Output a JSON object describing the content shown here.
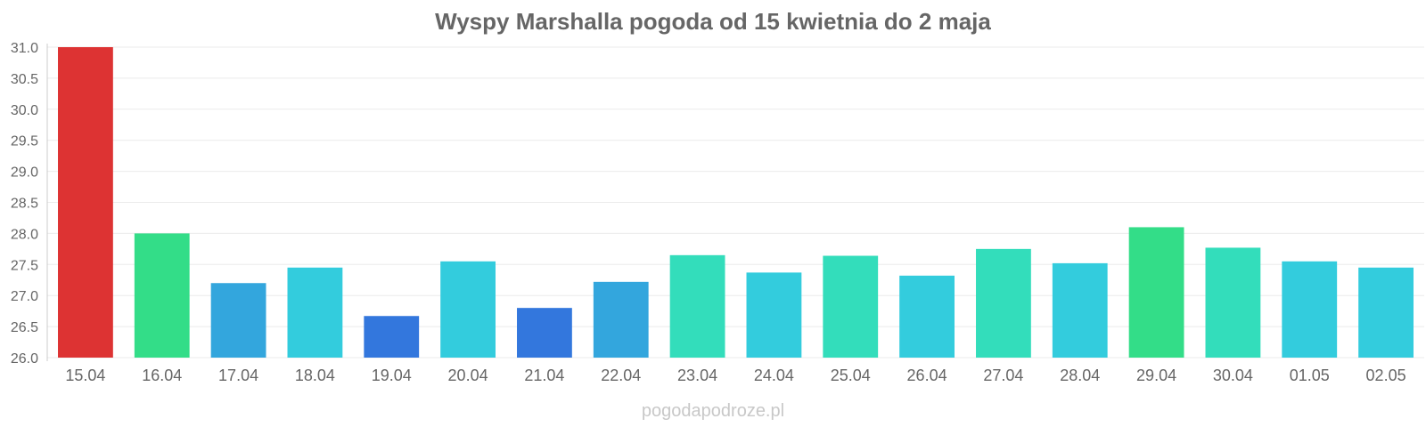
{
  "chart_data": {
    "type": "bar",
    "title": "Wyspy Marshalla pogoda od 15 kwietnia do 2 maja",
    "xlabel": "",
    "ylabel": "",
    "ylim": [
      26.0,
      31.0
    ],
    "yticks": [
      "26.0",
      "26.5",
      "27.0",
      "27.5",
      "28.0",
      "28.5",
      "29.0",
      "29.5",
      "30.0",
      "30.5",
      "31.0"
    ],
    "categories": [
      "15.04",
      "16.04",
      "17.04",
      "18.04",
      "19.04",
      "20.04",
      "21.04",
      "22.04",
      "23.04",
      "24.04",
      "25.04",
      "26.04",
      "27.04",
      "28.04",
      "29.04",
      "30.04",
      "01.05",
      "02.05"
    ],
    "values": [
      31.0,
      28.0,
      27.2,
      27.45,
      26.67,
      27.55,
      26.8,
      27.22,
      27.65,
      27.37,
      27.64,
      27.32,
      27.75,
      27.52,
      28.1,
      27.77,
      27.55,
      27.45
    ],
    "colors": [
      "#dd3333",
      "#33dd88",
      "#33a6dd",
      "#33ccdd",
      "#3377dd",
      "#33ccdd",
      "#3377dd",
      "#33a6dd",
      "#33ddbb",
      "#33ccdd",
      "#33ddbb",
      "#33ccdd",
      "#33ddbb",
      "#33ccdd",
      "#33dd88",
      "#33ddbb",
      "#33ccdd",
      "#33ccdd"
    ],
    "grid": true,
    "legend": "none"
  },
  "footer": {
    "credit": "pogodapodroze.pl"
  }
}
